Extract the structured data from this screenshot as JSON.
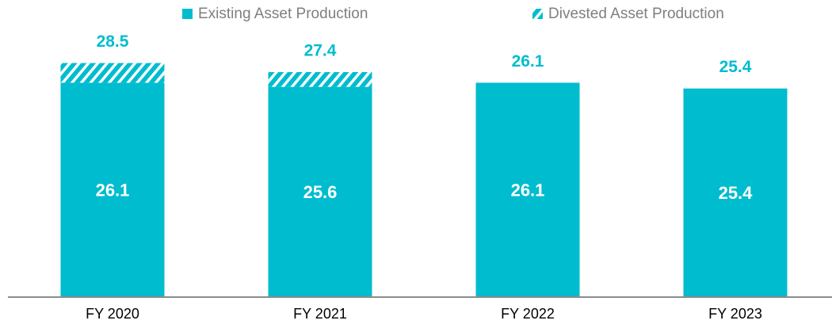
{
  "chart_data": {
    "type": "stacked_bar",
    "categories": [
      "FY 2020",
      "FY 2021",
      "FY 2022",
      "FY 2023"
    ],
    "series": [
      {
        "name": "Existing Asset Production",
        "color": "#00bccf",
        "hatch": false,
        "values": [
          26.1,
          25.6,
          26.1,
          25.4
        ]
      },
      {
        "name": "Divested Asset Production",
        "color": "#00bccf",
        "hatch": true,
        "values": [
          2.4,
          1.8,
          0,
          0
        ]
      }
    ],
    "totals": [
      28.5,
      27.4,
      26.1,
      25.4
    ],
    "ylim": [
      0,
      30
    ]
  }
}
